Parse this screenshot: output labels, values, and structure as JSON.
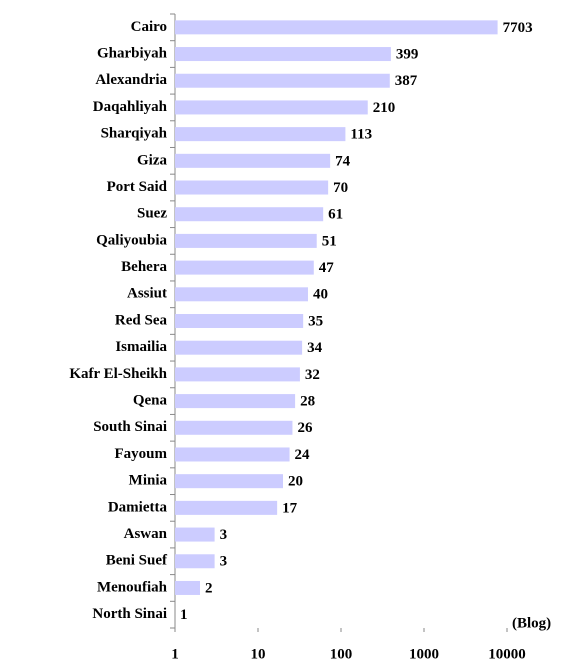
{
  "chart_data": {
    "type": "bar",
    "orientation": "horizontal",
    "xscale": "log",
    "xlabel": "(Blog)",
    "categories": [
      "Cairo",
      "Gharbiyah",
      "Alexandria",
      "Daqahliyah",
      "Sharqiyah",
      "Giza",
      "Port Said",
      "Suez",
      "Qaliyoubia",
      "Behera",
      "Assiut",
      "Red Sea",
      "Ismailia",
      "Kafr El-Sheikh",
      "Qena",
      "South Sinai",
      "Fayoum",
      "Minia",
      "Damietta",
      "Aswan",
      "Beni Suef",
      "Menoufiah",
      "North Sinai"
    ],
    "values": [
      7703,
      399,
      387,
      210,
      113,
      74,
      70,
      61,
      51,
      47,
      40,
      35,
      34,
      32,
      28,
      26,
      24,
      20,
      17,
      3,
      3,
      2,
      1
    ],
    "color": "#ccccff",
    "xlim": [
      1,
      10000
    ],
    "xticks": [
      1,
      10,
      100,
      1000,
      10000
    ],
    "grid": false
  }
}
